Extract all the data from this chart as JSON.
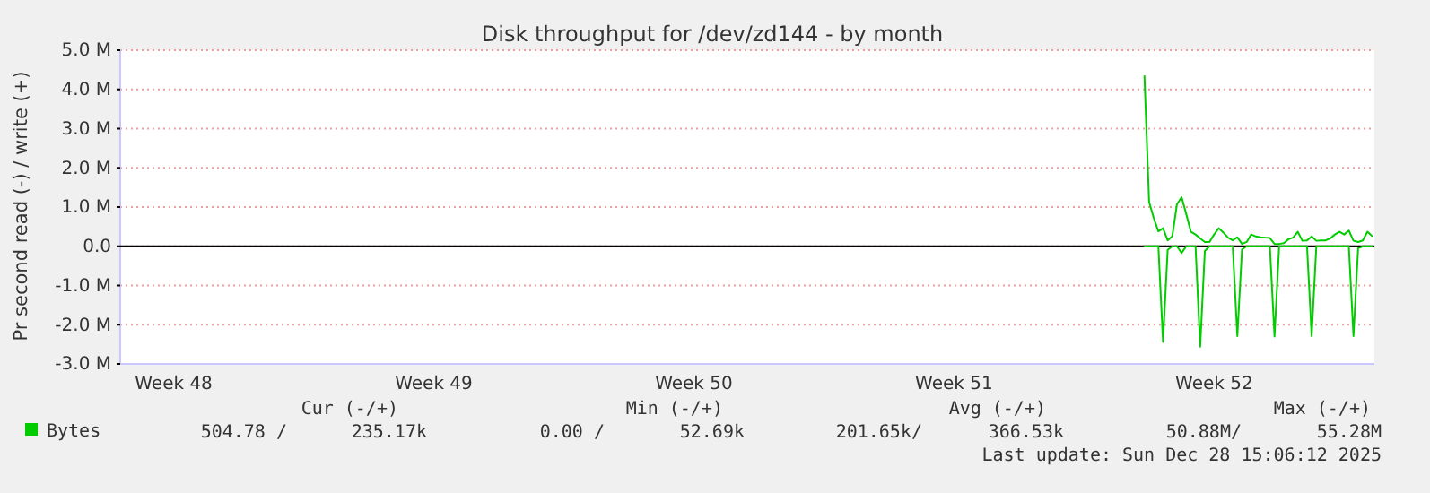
{
  "chart_data": {
    "type": "line",
    "title": "Disk throughput for /dev/zd144 - by month",
    "ylabel": "Pr second read (-) / write (+)",
    "categories": [
      null,
      null,
      null,
      null,
      null,
      null,
      null,
      null,
      null,
      null,
      null,
      "Week 48",
      null,
      null,
      null,
      null,
      null,
      null,
      null,
      null,
      null,
      null,
      null,
      null,
      null,
      null,
      null,
      null,
      null,
      null,
      null,
      null,
      null,
      null,
      null,
      null,
      null,
      null,
      null,
      null,
      null,
      null,
      null,
      null,
      null,
      null,
      null,
      null,
      null,
      null,
      null,
      null,
      null,
      null,
      null,
      null,
      null,
      null,
      null,
      null,
      null,
      null,
      null,
      null,
      null,
      null,
      null,
      "Week 49",
      null,
      null,
      null,
      null,
      null,
      null,
      null,
      null,
      null,
      null,
      null,
      null,
      null,
      null,
      null,
      null,
      null,
      null,
      null,
      null,
      null,
      null,
      null,
      null,
      null,
      null,
      null,
      null,
      null,
      null,
      null,
      null,
      null,
      null,
      null,
      null,
      null,
      null,
      null,
      null,
      null,
      null,
      null,
      null,
      null,
      null,
      null,
      null,
      null,
      null,
      null,
      null,
      null,
      null,
      null,
      "Week 50",
      null,
      null,
      null,
      null,
      null,
      null,
      null,
      null,
      null,
      null,
      null,
      null,
      null,
      null,
      null,
      null,
      null,
      null,
      null,
      null,
      null,
      null,
      null,
      null,
      null,
      null,
      null,
      null,
      null,
      null,
      null,
      null,
      null,
      null,
      null,
      null,
      null,
      null,
      null,
      null,
      null,
      null,
      null,
      null,
      null,
      null,
      null,
      null,
      null,
      null,
      null,
      null,
      null,
      null,
      null,
      "Week 51",
      null,
      null,
      null,
      null,
      null,
      null,
      null,
      null,
      null,
      null,
      null,
      null,
      null,
      null,
      null,
      null,
      null,
      null,
      null,
      null,
      null,
      null,
      null,
      null,
      null,
      null,
      null,
      null,
      null,
      null,
      null,
      null,
      null,
      null,
      null,
      null,
      null,
      null,
      null,
      null,
      null,
      null,
      null,
      null,
      null,
      null,
      null,
      null,
      null,
      null,
      null,
      null,
      null,
      null,
      null,
      "Week 52",
      null,
      null,
      null,
      null,
      null,
      null,
      null,
      null,
      null,
      null,
      null,
      null,
      null,
      null,
      null,
      null,
      null,
      null,
      null,
      null,
      null,
      null,
      null,
      null,
      null,
      null,
      null,
      null,
      null,
      null,
      null,
      null,
      null,
      null
    ],
    "ylim": [
      -3,
      5
    ],
    "yticks": [
      {
        "value": -3,
        "label": "-3.0 M"
      },
      {
        "value": -2,
        "label": "-2.0 M"
      },
      {
        "value": -1,
        "label": "-1.0 M"
      },
      {
        "value": 0,
        "label": "0.0"
      },
      {
        "value": 1,
        "label": "1.0 M"
      },
      {
        "value": 2,
        "label": "2.0 M"
      },
      {
        "value": 3,
        "label": "3.0 M"
      },
      {
        "value": 4,
        "label": "4.0 M"
      },
      {
        "value": 5,
        "label": "5.0 M"
      }
    ],
    "ref_lines": [
      {
        "axis": "y",
        "value": 0,
        "label": null,
        "color": "#000000"
      }
    ],
    "grid": "y",
    "legend": "bottom",
    "series": [
      {
        "name": "Bytes",
        "color": "#00cc00",
        "values": [
          null,
          null,
          null,
          null,
          null,
          null,
          null,
          null,
          null,
          null,
          null,
          null,
          null,
          null,
          null,
          null,
          null,
          null,
          null,
          null,
          null,
          null,
          null,
          null,
          null,
          null,
          null,
          null,
          null,
          null,
          null,
          null,
          null,
          null,
          null,
          null,
          null,
          null,
          null,
          null,
          null,
          null,
          null,
          null,
          null,
          null,
          null,
          null,
          null,
          null,
          null,
          null,
          null,
          null,
          null,
          null,
          null,
          null,
          null,
          null,
          null,
          null,
          null,
          null,
          null,
          null,
          null,
          null,
          null,
          null,
          null,
          null,
          null,
          null,
          null,
          null,
          null,
          null,
          null,
          null,
          null,
          null,
          null,
          null,
          null,
          null,
          null,
          null,
          null,
          null,
          null,
          null,
          null,
          null,
          null,
          null,
          null,
          null,
          null,
          null,
          null,
          null,
          null,
          null,
          null,
          null,
          null,
          null,
          null,
          null,
          null,
          null,
          null,
          null,
          null,
          null,
          null,
          null,
          null,
          null,
          null,
          null,
          null,
          null,
          null,
          null,
          null,
          null,
          null,
          null,
          null,
          null,
          null,
          null,
          null,
          null,
          null,
          null,
          null,
          null,
          null,
          null,
          null,
          null,
          null,
          null,
          null,
          null,
          null,
          null,
          null,
          null,
          null,
          null,
          null,
          null,
          null,
          null,
          null,
          null,
          null,
          null,
          null,
          null,
          null,
          null,
          null,
          null,
          null,
          null,
          null,
          null,
          null,
          null,
          null,
          null,
          null,
          null,
          null,
          null,
          null,
          null,
          null,
          null,
          null,
          null,
          null,
          null,
          null,
          null,
          null,
          null,
          null,
          null,
          null,
          null,
          null,
          null,
          null,
          null,
          null,
          null,
          null,
          null,
          null,
          null,
          null,
          null,
          null,
          null,
          null,
          null,
          null,
          null,
          null,
          null,
          null,
          null,
          null,
          null,
          4.34,
          1.13,
          0.72,
          0.38,
          0.46,
          0.15,
          0.26,
          1.07,
          1.25,
          0.82,
          0.37,
          0.3,
          0.2,
          0.11,
          0.11,
          0.3,
          0.46,
          0.35,
          0.22,
          0.15,
          0.23,
          0.06,
          0.11,
          0.3,
          0.25,
          0.23,
          0.22,
          0.21,
          0.06,
          0.06,
          0.08,
          0.18,
          0.22,
          0.37,
          0.14,
          0.15,
          0.25,
          0.14,
          0.15,
          0.15,
          0.2,
          0.3,
          0.37,
          0.3,
          0.4,
          0.14,
          0.11,
          0.15,
          0.37,
          0.26
        ]
      },
      {
        "color": "#00cc00",
        "values": [
          null,
          null,
          null,
          null,
          null,
          null,
          null,
          null,
          null,
          null,
          null,
          null,
          null,
          null,
          null,
          null,
          null,
          null,
          null,
          null,
          null,
          null,
          null,
          null,
          null,
          null,
          null,
          null,
          null,
          null,
          null,
          null,
          null,
          null,
          null,
          null,
          null,
          null,
          null,
          null,
          null,
          null,
          null,
          null,
          null,
          null,
          null,
          null,
          null,
          null,
          null,
          null,
          null,
          null,
          null,
          null,
          null,
          null,
          null,
          null,
          null,
          null,
          null,
          null,
          null,
          null,
          null,
          null,
          null,
          null,
          null,
          null,
          null,
          null,
          null,
          null,
          null,
          null,
          null,
          null,
          null,
          null,
          null,
          null,
          null,
          null,
          null,
          null,
          null,
          null,
          null,
          null,
          null,
          null,
          null,
          null,
          null,
          null,
          null,
          null,
          null,
          null,
          null,
          null,
          null,
          null,
          null,
          null,
          null,
          null,
          null,
          null,
          null,
          null,
          null,
          null,
          null,
          null,
          null,
          null,
          null,
          null,
          null,
          null,
          null,
          null,
          null,
          null,
          null,
          null,
          null,
          null,
          null,
          null,
          null,
          null,
          null,
          null,
          null,
          null,
          null,
          null,
          null,
          null,
          null,
          null,
          null,
          null,
          null,
          null,
          null,
          null,
          null,
          null,
          null,
          null,
          null,
          null,
          null,
          null,
          null,
          null,
          null,
          null,
          null,
          null,
          null,
          null,
          null,
          null,
          null,
          null,
          null,
          null,
          null,
          null,
          null,
          null,
          null,
          null,
          null,
          null,
          null,
          null,
          null,
          null,
          null,
          null,
          null,
          null,
          null,
          null,
          null,
          null,
          null,
          null,
          null,
          null,
          null,
          null,
          null,
          null,
          null,
          null,
          null,
          null,
          null,
          null,
          null,
          null,
          null,
          null,
          null,
          null,
          null,
          null,
          null,
          null,
          null,
          null,
          0,
          0,
          0,
          0,
          -2.44,
          -0.09,
          0,
          0,
          -0.17,
          0,
          0,
          0,
          -2.56,
          -0.12,
          0,
          0,
          0,
          0,
          0,
          0,
          -2.29,
          -0.08,
          0,
          0,
          0,
          0,
          0,
          0,
          -2.3,
          0,
          0,
          0,
          0,
          0,
          0,
          0,
          -2.29,
          0,
          0,
          0,
          0,
          0,
          0,
          0,
          0,
          -2.29,
          -0.05,
          0,
          0,
          0
        ]
      }
    ],
    "annotations": [
      "Cur (-/+)",
      "Min (-/+)",
      "Avg (-/+)",
      "Max (-/+)",
      "504.78 /",
      "235.17k",
      "0.00 /",
      "52.69k",
      "201.65k/",
      "366.53k",
      "50.88M/",
      "55.28M",
      "Last update: Sun Dec 28 15:06:12 2025"
    ]
  }
}
